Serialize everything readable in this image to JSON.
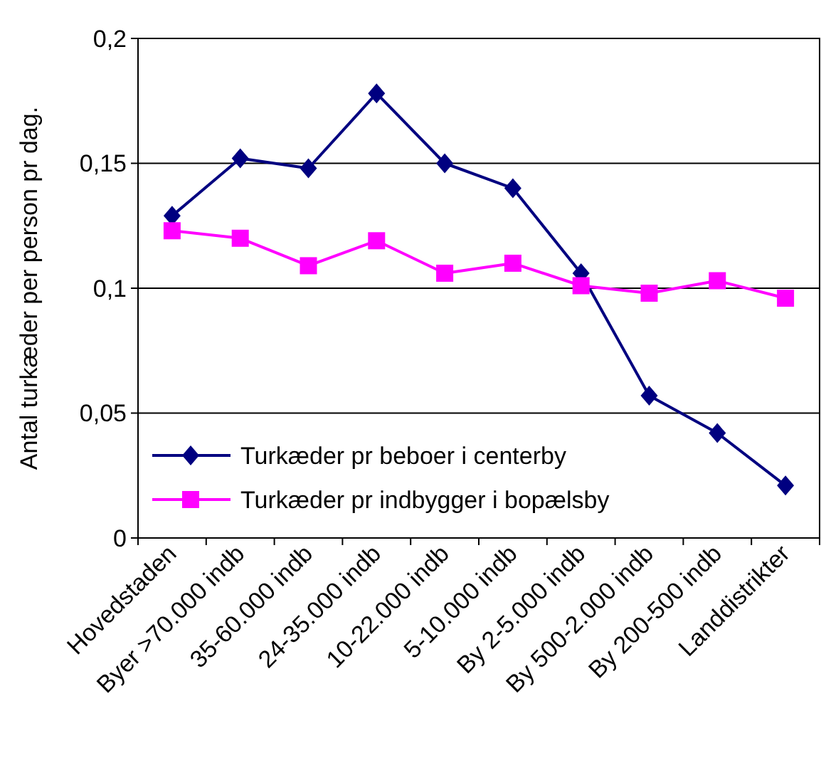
{
  "chart_data": {
    "type": "line",
    "ylabel": "Antal turkæder per person pr dag.",
    "categories": [
      "Hovedstaden",
      "Byer >70.000 indb",
      "35-60.000 indb",
      "24-35.000 indb",
      "10-22.000 indb",
      "5-10.000 indb",
      "By 2-5.000 indb",
      "By 500-2.000 indb",
      "By 200-500 indb",
      "Landdistrikter"
    ],
    "series": [
      {
        "name": "Turkæder pr beboer i centerby",
        "color": "#000080",
        "marker": "diamond",
        "values": [
          0.129,
          0.152,
          0.148,
          0.178,
          0.15,
          0.14,
          0.106,
          0.057,
          0.042,
          0.021
        ]
      },
      {
        "name": "Turkæder pr indbygger i bopælsby",
        "color": "#ff00ff",
        "marker": "square",
        "values": [
          0.123,
          0.12,
          0.109,
          0.119,
          0.106,
          0.11,
          0.101,
          0.098,
          0.103,
          0.096
        ]
      }
    ],
    "ylim": [
      0,
      0.2
    ],
    "yticks": [
      {
        "value": 0,
        "label": "0"
      },
      {
        "value": 0.05,
        "label": "0,05"
      },
      {
        "value": 0.1,
        "label": "0,1"
      },
      {
        "value": 0.15,
        "label": "0,15"
      },
      {
        "value": 0.2,
        "label": "0,2"
      }
    ],
    "grid": "y",
    "legend": "bottom left"
  }
}
